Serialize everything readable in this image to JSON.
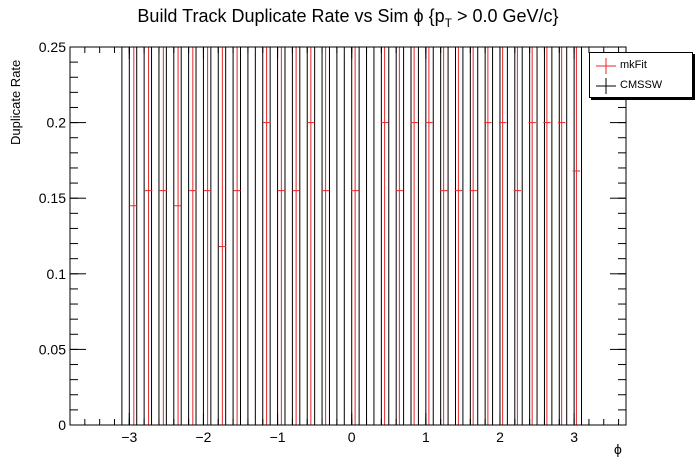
{
  "title": {
    "main": "Build Track Duplicate Rate vs Sim ϕ {p",
    "sub": "T",
    "tail": " > 0.0 GeV/c}"
  },
  "colors": {
    "mkfit": "#e8262a",
    "cmssw": "#000000"
  },
  "chart_data": {
    "type": "scatter",
    "title": "Build Track Duplicate Rate vs Sim ϕ {pT > 0.0 GeV/c}",
    "xlabel": "ϕ",
    "ylabel": "Duplicate Rate",
    "xlim": [
      -3.8,
      3.7
    ],
    "ylim": [
      0,
      0.25
    ],
    "xticks": [
      -3,
      -2,
      -1,
      0,
      1,
      2,
      3
    ],
    "xtick_labels": [
      "−3",
      "−2",
      "−1",
      "0",
      "1",
      "2",
      "3"
    ],
    "yticks": [
      0,
      0.05,
      0.1,
      0.15,
      0.2,
      0.25
    ],
    "ytick_labels": [
      "0",
      "0.05",
      "0.1",
      "0.15",
      "0.2",
      "0.25"
    ],
    "grid": false,
    "legend_position": "top-right",
    "bin_width": 0.0995,
    "series": [
      {
        "name": "mkFit",
        "x": [
          -2.939,
          -2.74,
          -2.541,
          -2.342,
          -2.143,
          -1.944,
          -1.745,
          -1.546,
          -1.148,
          -0.949,
          -0.75,
          -0.551,
          -0.352,
          0.046,
          0.444,
          0.643,
          0.842,
          1.041,
          1.24,
          1.439,
          1.638,
          1.837,
          2.036,
          2.235,
          2.434,
          2.633,
          2.832,
          3.031
        ],
        "y": [
          0.145,
          0.155,
          0.155,
          0.145,
          0.155,
          0.155,
          0.118,
          0.155,
          0.2,
          0.155,
          0.155,
          0.2,
          0.155,
          0.155,
          0.2,
          0.155,
          0.2,
          0.2,
          0.155,
          0.155,
          0.155,
          0.2,
          0.2,
          0.155,
          0.2,
          0.2,
          0.2,
          0.168
        ],
        "err": [
          0.25,
          0.25,
          0.25,
          0.25,
          0.25,
          0.25,
          0.25,
          0.25,
          0.25,
          0.25,
          0.25,
          0.25,
          0.25,
          0.25,
          0.25,
          0.25,
          0.25,
          0.25,
          0.25,
          0.25,
          0.25,
          0.25,
          0.25,
          0.25,
          0.25,
          0.25,
          0.25,
          0.25
        ]
      },
      {
        "name": "CMSSW",
        "x": [
          -3.1,
          -3.0,
          -2.9,
          -2.8,
          -2.7,
          -2.6,
          -2.5,
          -2.4,
          -2.3,
          -2.2,
          -2.1,
          -2.0,
          -1.9,
          -1.8,
          -1.7,
          -1.6,
          -1.5,
          -1.4,
          -1.3,
          -1.2,
          -1.1,
          -1.0,
          -0.9,
          -0.8,
          -0.7,
          -0.6,
          -0.5,
          -0.4,
          -0.3,
          -0.2,
          -0.1,
          0.0,
          0.1,
          0.2,
          0.3,
          0.4,
          0.5,
          0.6,
          0.7,
          0.8,
          0.9,
          1.0,
          1.1,
          1.2,
          1.3,
          1.4,
          1.5,
          1.6,
          1.7,
          1.8,
          1.9,
          2.0,
          2.1,
          2.2,
          2.3,
          2.4,
          2.5,
          2.6,
          2.7,
          2.8,
          2.9,
          3.0,
          3.1
        ],
        "y": [
          0,
          0,
          0,
          0,
          0,
          0,
          0,
          0,
          0,
          0,
          0,
          0,
          0,
          0,
          0,
          0,
          0,
          0,
          0,
          0,
          0,
          0,
          0,
          0,
          0,
          0,
          0,
          0,
          0,
          0,
          0,
          0,
          0,
          0,
          0,
          0,
          0,
          0,
          0,
          0,
          0,
          0,
          0,
          0,
          0,
          0,
          0,
          0,
          0,
          0,
          0,
          0,
          0,
          0,
          0,
          0,
          0,
          0,
          0,
          0,
          0,
          0,
          0
        ],
        "err": [
          0.25,
          0.25,
          0.25,
          0.25,
          0.25,
          0.25,
          0.25,
          0.25,
          0.25,
          0.25,
          0.25,
          0.25,
          0.25,
          0.25,
          0.25,
          0.25,
          0.25,
          0.25,
          0.25,
          0.25,
          0.25,
          0.25,
          0.25,
          0.25,
          0.25,
          0.25,
          0.25,
          0.25,
          0.25,
          0.25,
          0.25,
          0.25,
          0.25,
          0.25,
          0.25,
          0.25,
          0.25,
          0.25,
          0.25,
          0.25,
          0.25,
          0.25,
          0.25,
          0.25,
          0.25,
          0.25,
          0.25,
          0.25,
          0.25,
          0.25,
          0.25,
          0.25,
          0.25,
          0.25,
          0.25,
          0.25,
          0.25,
          0.25,
          0.25,
          0.25,
          0.25,
          0.25,
          0.25
        ]
      }
    ]
  }
}
